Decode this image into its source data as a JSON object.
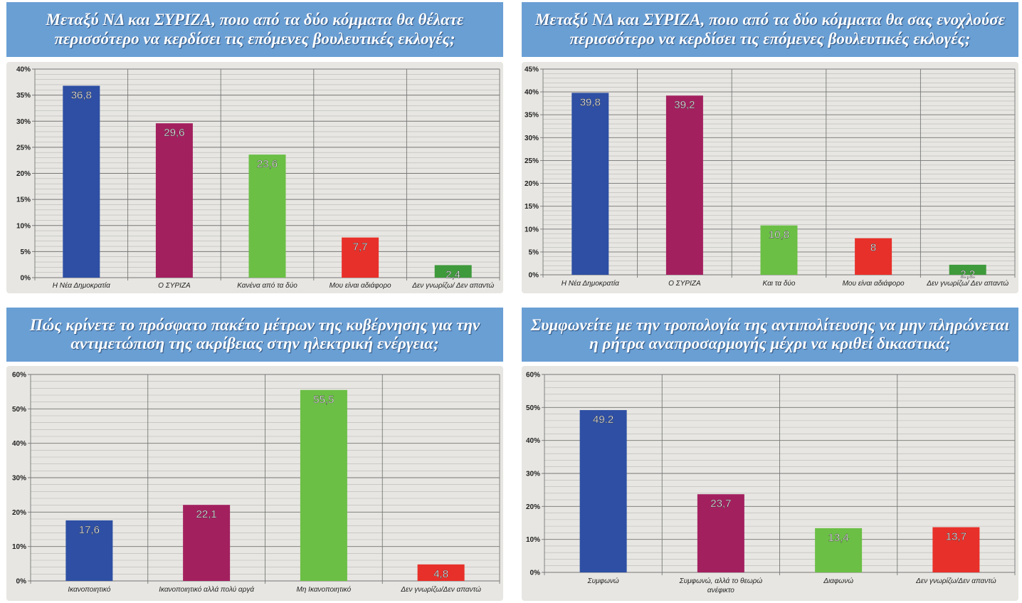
{
  "chart_data": [
    {
      "type": "bar",
      "title": "Μεταξύ ΝΔ και ΣΥΡΙΖΑ, ποιο από τα δύο κόμματα θα θέλατε περισσότερο να κερδίσει τις επόμενες βουλευτικές εκλογές;",
      "categories": [
        "Η Νέα Δημοκρατία",
        "Ο ΣΥΡΙΖΑ",
        "Κανένα  από τα δύο",
        "Μου είναι  αδιάφορο",
        "Δεν γνωρίζω/ Δεν απαντώ"
      ],
      "values": [
        36.8,
        29.6,
        23.6,
        7.7,
        2.4
      ],
      "value_labels": [
        "36,8",
        "29,6",
        "23,6",
        "7,7",
        "2,4"
      ],
      "colors": [
        "#2e4fa3",
        "#a3205f",
        "#6bbf45",
        "#e8302a",
        "#3f9a3c"
      ],
      "ylim": [
        0,
        40
      ],
      "yticks": [
        0,
        5,
        10,
        15,
        20,
        25,
        30,
        35,
        40
      ],
      "ytick_labels": [
        "0%",
        "5%",
        "10%",
        "15%",
        "20%",
        "25%",
        "30%",
        "35%",
        "40%"
      ],
      "xlabel": "",
      "ylabel": "",
      "grid": true
    },
    {
      "type": "bar",
      "title": "Μεταξύ ΝΔ και ΣΥΡΙΖΑ, ποιο από τα δύο κόμματα θα σας ενοχλούσε περισσότερο να κερδίσει τις επόμενες βουλευτικές εκλογές;",
      "categories": [
        "Η Νέα Δημοκρατία",
        "Ο ΣΥΡΙΖΑ",
        "Και τα δύο",
        "Μου είναι  αδιάφορο",
        "Δεν γνωρίζω/ Δεν απαντώ"
      ],
      "values": [
        39.8,
        39.2,
        10.8,
        8,
        2.2
      ],
      "value_labels": [
        "39,8",
        "39,2",
        "10,8",
        "8",
        "2,2"
      ],
      "colors": [
        "#2e4fa3",
        "#a3205f",
        "#6bbf45",
        "#e8302a",
        "#3f9a3c"
      ],
      "ylim": [
        0,
        45
      ],
      "yticks": [
        0,
        5,
        10,
        15,
        20,
        25,
        30,
        35,
        40,
        45
      ],
      "ytick_labels": [
        "0%",
        "5%",
        "10%",
        "15%",
        "20%",
        "25%",
        "30%",
        "35%",
        "40%",
        "45%"
      ],
      "xlabel": "",
      "ylabel": "",
      "grid": true
    },
    {
      "type": "bar",
      "title": "Πώς κρίνετε το πρόσφατο πακέτο μέτρων της κυβέρνησης για την αντιμετώπιση της ακρίβειας στην ηλεκτρική ενέργεια;",
      "categories": [
        "Ικανοποιητικό",
        "Ικανοποιητικό  αλλά πολύ αργά",
        "Μη Ικανοποιητικό",
        "Δεν γνωρίζω/Δεν απαντώ"
      ],
      "values": [
        17.6,
        22.1,
        55.5,
        4.8
      ],
      "value_labels": [
        "17,6",
        "22,1",
        "55,5",
        "4,8"
      ],
      "colors": [
        "#2e4fa3",
        "#a3205f",
        "#6bbf45",
        "#e8302a"
      ],
      "ylim": [
        0,
        60
      ],
      "yticks": [
        0,
        10,
        20,
        30,
        40,
        50,
        60
      ],
      "ytick_labels": [
        "0%",
        "10%",
        "20%",
        "30%",
        "40%",
        "50%",
        "60%"
      ],
      "xlabel": "",
      "ylabel": "",
      "grid": true
    },
    {
      "type": "bar",
      "title": "Συμφωνείτε με την τροπολογία της αντιπολίτευσης να μην πληρώνεται η ρήτρα αναπροσαρμογής μέχρι να κριθεί δικαστικά;",
      "categories": [
        "Συμφωνώ",
        "Συμφωνώ, αλλά το θεωρώ ανέφικτο",
        "Διαφωνώ",
        "Δεν γνωρίζω/Δεν απαντώ"
      ],
      "values": [
        49.2,
        23.7,
        13.4,
        13.7
      ],
      "value_labels": [
        "49.2",
        "23,7",
        "13,4",
        "13,7"
      ],
      "colors": [
        "#2e4fa3",
        "#a3205f",
        "#6bbf45",
        "#e8302a"
      ],
      "ylim": [
        0,
        60
      ],
      "yticks": [
        0,
        10,
        20,
        30,
        40,
        50,
        60
      ],
      "ytick_labels": [
        "0%",
        "10%",
        "20%",
        "30%",
        "40%",
        "50%",
        "60%"
      ],
      "xlabel": "",
      "ylabel": "",
      "grid": true
    }
  ]
}
